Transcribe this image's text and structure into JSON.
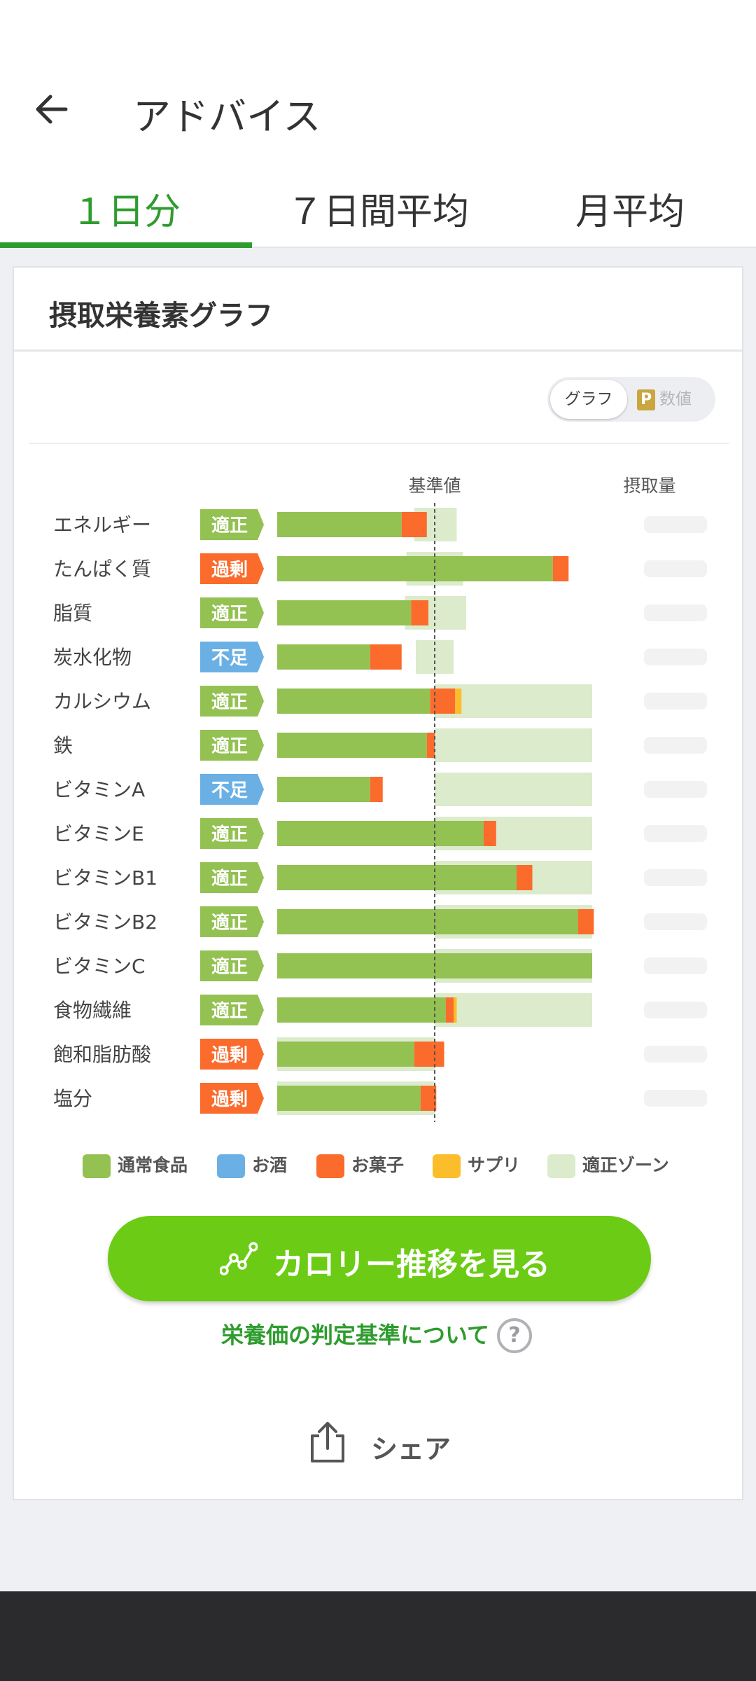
{
  "header": {
    "title": "アドバイス"
  },
  "tabs": [
    {
      "label": "１日分",
      "active": true
    },
    {
      "label": "７日間平均",
      "active": false
    },
    {
      "label": "月平均",
      "active": false
    }
  ],
  "card": {
    "title": "摂取栄養素グラフ",
    "toggle": {
      "graph_label": "グラフ",
      "numeric_label": "数値",
      "numeric_badge": "P"
    }
  },
  "chart_data": {
    "type": "bar",
    "orientation": "horizontal",
    "stacked": true,
    "baseline_label": "基準値",
    "intake_label": "摂取量",
    "intake_values_visible": false,
    "scale": "percent_of_reference",
    "reference_value": 100,
    "categories": [
      "エネルギー",
      "たんぱく質",
      "脂質",
      "炭水化物",
      "カルシウム",
      "鉄",
      "ビタミンA",
      "ビタミンE",
      "ビタミンB1",
      "ビタミンB2",
      "ビタミンC",
      "食物繊維",
      "飽和脂肪酸",
      "塩分"
    ],
    "judgements": [
      "適正",
      "過剰",
      "適正",
      "不足",
      "適正",
      "適正",
      "不足",
      "適正",
      "適正",
      "適正",
      "適正",
      "適正",
      "過剰",
      "過剰"
    ],
    "series": [
      {
        "name": "通常食品",
        "color": "#93c152",
        "values": [
          79,
          175,
          85,
          59,
          97,
          95,
          59,
          131,
          152,
          191,
          200,
          107,
          87,
          91
        ]
      },
      {
        "name": "お酒",
        "color": "#6ab0e4",
        "values": [
          0,
          0,
          0,
          0,
          0,
          0,
          0,
          0,
          0,
          0,
          0,
          0,
          0,
          0
        ]
      },
      {
        "name": "お菓子",
        "color": "#fa6b2c",
        "values": [
          16,
          10,
          11,
          20,
          16,
          5,
          8,
          8,
          10,
          10,
          0,
          5,
          19,
          10
        ]
      },
      {
        "name": "サプリ",
        "color": "#fbbd2a",
        "values": [
          0,
          0,
          0,
          0,
          4,
          0,
          0,
          0,
          0,
          0,
          0,
          2,
          0,
          0
        ]
      }
    ],
    "zone": {
      "name": "適正ゾーン",
      "color": "#dcebcb",
      "ranges": [
        [
          87,
          114
        ],
        [
          82,
          118
        ],
        [
          81,
          120
        ],
        [
          88,
          112
        ],
        [
          100,
          200
        ],
        [
          100,
          200
        ],
        [
          100,
          200
        ],
        [
          100,
          200
        ],
        [
          100,
          200
        ],
        [
          100,
          200
        ],
        [
          100,
          200
        ],
        [
          100,
          200
        ],
        [
          0,
          100
        ],
        [
          0,
          100
        ]
      ]
    },
    "xlim": [
      0,
      200
    ]
  },
  "colors": {
    "adequate": "#93c152",
    "excess": "#fa6b2c",
    "deficient": "#6ab0e4",
    "accent": "#2e9c2e",
    "cta": "#6ccb14"
  },
  "cta": {
    "label": "カロリー推移を見る",
    "icon": "trend-chart-icon"
  },
  "criteria_link": {
    "label": "栄養価の判定基準について",
    "icon": "help-icon"
  },
  "share": {
    "label": "シェア",
    "icon": "share-icon"
  }
}
